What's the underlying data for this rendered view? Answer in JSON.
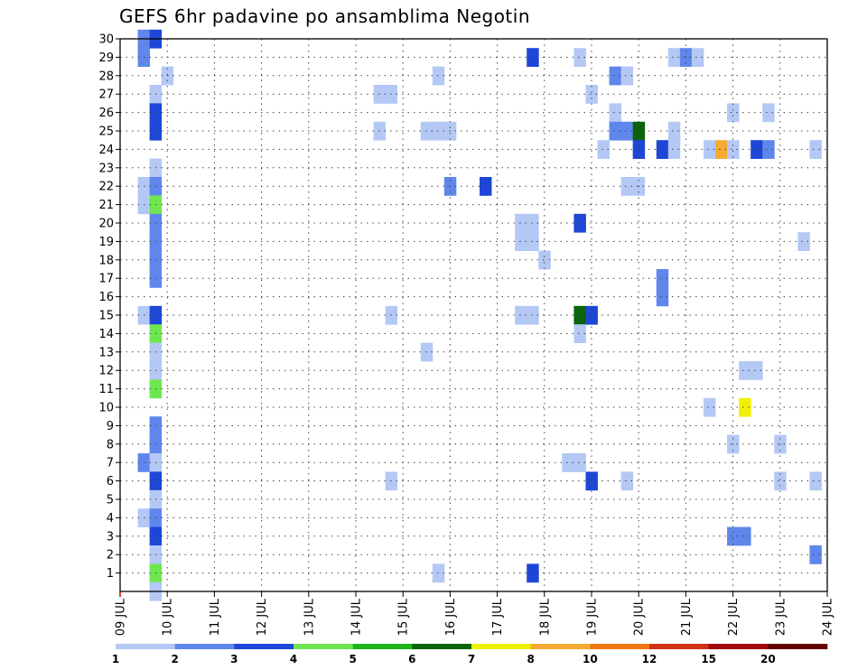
{
  "chart_data": {
    "type": "heatmap",
    "title": "GEFS 6hr padavine po ansamblima Negotin",
    "x_ticks": [
      "09 JUL",
      "10 JUL",
      "11 JUL",
      "12 JUL",
      "13 JUL",
      "14 JUL",
      "15 JUL",
      "16 JUL",
      "17 JUL",
      "18 JUL",
      "19 JUL",
      "20 JUL",
      "21 JUL",
      "22 JUL",
      "23 JUL",
      "24 JUL"
    ],
    "x_range_days": [
      9,
      24
    ],
    "time_step_hours": 6,
    "y_ticks": [
      "1",
      "2",
      "3",
      "4",
      "5",
      "6",
      "7",
      "8",
      "9",
      "10",
      "11",
      "12",
      "13",
      "14",
      "15",
      "16",
      "17",
      "18",
      "19",
      "20",
      "21",
      "22",
      "23",
      "24",
      "25",
      "26",
      "27",
      "28",
      "29",
      "30"
    ],
    "y_range": [
      0,
      30
    ],
    "grid": true,
    "legend": {
      "position": "bottom",
      "labels": [
        "1",
        "2",
        "3",
        "4",
        "5",
        "6",
        "7",
        "8",
        "10",
        "12",
        "15",
        "20"
      ],
      "colors": [
        "#b4c8f5",
        "#5f87eb",
        "#1e46d7",
        "#6ee650",
        "#1eb41e",
        "#0a640a",
        "#f0f000",
        "#f5aa32",
        "#f07814",
        "#d23214",
        "#a00a0a",
        "#640000"
      ]
    },
    "cells": [
      {
        "member": 30,
        "time": "09 JUL 12",
        "value": 2
      },
      {
        "member": 30,
        "time": "09 JUL 18",
        "value": 3
      },
      {
        "member": 29,
        "time": "09 JUL 12",
        "value": 2
      },
      {
        "member": 29,
        "time": "17 JUL 18",
        "value": 3
      },
      {
        "member": 29,
        "time": "18 JUL 18",
        "value": 1
      },
      {
        "member": 29,
        "time": "20 JUL 18",
        "value": 1
      },
      {
        "member": 29,
        "time": "21 JUL 00",
        "value": 2
      },
      {
        "member": 29,
        "time": "21 JUL 06",
        "value": 1
      },
      {
        "member": 28,
        "time": "10 JUL 00",
        "value": 1
      },
      {
        "member": 28,
        "time": "15 JUL 18",
        "value": 1
      },
      {
        "member": 28,
        "time": "19 JUL 12",
        "value": 2
      },
      {
        "member": 28,
        "time": "19 JUL 18",
        "value": 1
      },
      {
        "member": 27,
        "time": "09 JUL 18",
        "value": 1
      },
      {
        "member": 27,
        "time": "14 JUL 12",
        "value": 1
      },
      {
        "member": 27,
        "time": "14 JUL 18",
        "value": 1
      },
      {
        "member": 27,
        "time": "19 JUL 00",
        "value": 1
      },
      {
        "member": 26,
        "time": "09 JUL 18",
        "value": 3
      },
      {
        "member": 26,
        "time": "19 JUL 12",
        "value": 1
      },
      {
        "member": 26,
        "time": "22 JUL 00",
        "value": 1
      },
      {
        "member": 26,
        "time": "22 JUL 18",
        "value": 1
      },
      {
        "member": 25,
        "time": "09 JUL 18",
        "value": 3
      },
      {
        "member": 25,
        "time": "14 JUL 12",
        "value": 1
      },
      {
        "member": 25,
        "time": "15 JUL 12",
        "value": 1
      },
      {
        "member": 25,
        "time": "15 JUL 18",
        "value": 1
      },
      {
        "member": 25,
        "time": "16 JUL 00",
        "value": 1
      },
      {
        "member": 25,
        "time": "19 JUL 12",
        "value": 2
      },
      {
        "member": 25,
        "time": "19 JUL 18",
        "value": 2
      },
      {
        "member": 25,
        "time": "20 JUL 00",
        "value": 6
      },
      {
        "member": 25,
        "time": "20 JUL 18",
        "value": 1
      },
      {
        "member": 24,
        "time": "19 JUL 06",
        "value": 1
      },
      {
        "member": 24,
        "time": "20 JUL 00",
        "value": 3
      },
      {
        "member": 24,
        "time": "20 JUL 12",
        "value": 3
      },
      {
        "member": 24,
        "time": "20 JUL 18",
        "value": 1
      },
      {
        "member": 24,
        "time": "21 JUL 12",
        "value": 1
      },
      {
        "member": 24,
        "time": "21 JUL 18",
        "value": 8
      },
      {
        "member": 24,
        "time": "22 JUL 00",
        "value": 1
      },
      {
        "member": 24,
        "time": "22 JUL 12",
        "value": 3
      },
      {
        "member": 24,
        "time": "22 JUL 18",
        "value": 2
      },
      {
        "member": 24,
        "time": "23 JUL 18",
        "value": 1
      },
      {
        "member": 23,
        "time": "09 JUL 18",
        "value": 1
      },
      {
        "member": 22,
        "time": "09 JUL 12",
        "value": 1
      },
      {
        "member": 22,
        "time": "09 JUL 18",
        "value": 2
      },
      {
        "member": 22,
        "time": "16 JUL 00",
        "value": 2
      },
      {
        "member": 22,
        "time": "16 JUL 18",
        "value": 3
      },
      {
        "member": 22,
        "time": "19 JUL 18",
        "value": 1
      },
      {
        "member": 22,
        "time": "20 JUL 00",
        "value": 1
      },
      {
        "member": 21,
        "time": "09 JUL 12",
        "value": 1
      },
      {
        "member": 21,
        "time": "09 JUL 18",
        "value": 4
      },
      {
        "member": 20,
        "time": "09 JUL 18",
        "value": 2
      },
      {
        "member": 20,
        "time": "17 JUL 12",
        "value": 1
      },
      {
        "member": 20,
        "time": "17 JUL 18",
        "value": 1
      },
      {
        "member": 20,
        "time": "18 JUL 18",
        "value": 3
      },
      {
        "member": 19,
        "time": "09 JUL 18",
        "value": 2
      },
      {
        "member": 19,
        "time": "17 JUL 12",
        "value": 1
      },
      {
        "member": 19,
        "time": "17 JUL 18",
        "value": 1
      },
      {
        "member": 19,
        "time": "23 JUL 12",
        "value": 1
      },
      {
        "member": 18,
        "time": "09 JUL 18",
        "value": 2
      },
      {
        "member": 18,
        "time": "18 JUL 00",
        "value": 1
      },
      {
        "member": 17,
        "time": "09 JUL 18",
        "value": 2
      },
      {
        "member": 17,
        "time": "20 JUL 12",
        "value": 2
      },
      {
        "member": 16,
        "time": "20 JUL 12",
        "value": 2
      },
      {
        "member": 15,
        "time": "09 JUL 12",
        "value": 1
      },
      {
        "member": 15,
        "time": "09 JUL 18",
        "value": 3
      },
      {
        "member": 15,
        "time": "14 JUL 18",
        "value": 1
      },
      {
        "member": 15,
        "time": "17 JUL 12",
        "value": 1
      },
      {
        "member": 15,
        "time": "17 JUL 18",
        "value": 1
      },
      {
        "member": 15,
        "time": "18 JUL 18",
        "value": 6
      },
      {
        "member": 15,
        "time": "19 JUL 00",
        "value": 3
      },
      {
        "member": 14,
        "time": "09 JUL 18",
        "value": 4
      },
      {
        "member": 14,
        "time": "18 JUL 18",
        "value": 1
      },
      {
        "member": 13,
        "time": "09 JUL 18",
        "value": 1
      },
      {
        "member": 13,
        "time": "15 JUL 12",
        "value": 1
      },
      {
        "member": 12,
        "time": "09 JUL 18",
        "value": 1
      },
      {
        "member": 12,
        "time": "22 JUL 06",
        "value": 1
      },
      {
        "member": 12,
        "time": "22 JUL 12",
        "value": 1
      },
      {
        "member": 11,
        "time": "09 JUL 18",
        "value": 4
      },
      {
        "member": 10,
        "time": "21 JUL 12",
        "value": 1
      },
      {
        "member": 10,
        "time": "22 JUL 06",
        "value": 7
      },
      {
        "member": 9,
        "time": "09 JUL 18",
        "value": 2
      },
      {
        "member": 8,
        "time": "09 JUL 18",
        "value": 2
      },
      {
        "member": 8,
        "time": "22 JUL 00",
        "value": 1
      },
      {
        "member": 8,
        "time": "23 JUL 00",
        "value": 1
      },
      {
        "member": 7,
        "time": "09 JUL 12",
        "value": 2
      },
      {
        "member": 7,
        "time": "09 JUL 18",
        "value": 1
      },
      {
        "member": 7,
        "time": "18 JUL 12",
        "value": 1
      },
      {
        "member": 7,
        "time": "18 JUL 18",
        "value": 1
      },
      {
        "member": 6,
        "time": "09 JUL 18",
        "value": 3
      },
      {
        "member": 6,
        "time": "14 JUL 18",
        "value": 1
      },
      {
        "member": 6,
        "time": "19 JUL 00",
        "value": 3
      },
      {
        "member": 6,
        "time": "19 JUL 18",
        "value": 1
      },
      {
        "member": 6,
        "time": "23 JUL 00",
        "value": 1
      },
      {
        "member": 6,
        "time": "23 JUL 18",
        "value": 1
      },
      {
        "member": 5,
        "time": "09 JUL 18",
        "value": 1
      },
      {
        "member": 4,
        "time": "09 JUL 12",
        "value": 1
      },
      {
        "member": 4,
        "time": "09 JUL 18",
        "value": 2
      },
      {
        "member": 3,
        "time": "09 JUL 18",
        "value": 3
      },
      {
        "member": 3,
        "time": "22 JUL 00",
        "value": 2
      },
      {
        "member": 3,
        "time": "22 JUL 06",
        "value": 2
      },
      {
        "member": 2,
        "time": "09 JUL 18",
        "value": 1
      },
      {
        "member": 2,
        "time": "23 JUL 18",
        "value": 2
      },
      {
        "member": 1,
        "time": "09 JUL 18",
        "value": 4
      },
      {
        "member": 1,
        "time": "15 JUL 18",
        "value": 1
      },
      {
        "member": 1,
        "time": "17 JUL 18",
        "value": 3
      },
      {
        "member": 0,
        "time": "09 JUL 18",
        "value": 1
      }
    ]
  }
}
